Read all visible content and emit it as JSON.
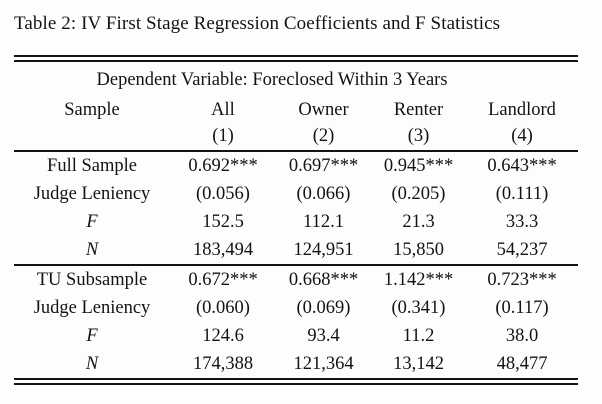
{
  "colors": {
    "ink": "#131313",
    "background": "#fdfdfd"
  },
  "caption": "Table 2: IV First Stage Regression Coefficients and F Statistics",
  "table": {
    "dependent_variable_header": "Dependent Variable: Foreclosed Within 3 Years",
    "columns": {
      "sample_label": "Sample",
      "groups": [
        "All",
        "Owner",
        "Renter",
        "Landlord"
      ],
      "numbers": [
        "(1)",
        "(2)",
        "(3)",
        "(4)"
      ]
    },
    "panels": [
      {
        "rows": [
          {
            "label": "Full Sample",
            "values": [
              "0.692***",
              "0.697***",
              "0.945***",
              "0.643***"
            ]
          },
          {
            "label": "Judge Leniency",
            "values": [
              "(0.056)",
              "(0.066)",
              "(0.205)",
              "(0.111)"
            ]
          },
          {
            "label": "F",
            "values": [
              "152.5",
              "112.1",
              "21.3",
              "33.3"
            ]
          },
          {
            "label": "N",
            "values": [
              "183,494",
              "124,951",
              "15,850",
              "54,237"
            ]
          }
        ]
      },
      {
        "rows": [
          {
            "label": "TU Subsample",
            "values": [
              "0.672***",
              "0.668***",
              "1.142***",
              "0.723***"
            ]
          },
          {
            "label": "Judge Leniency",
            "values": [
              "(0.060)",
              "(0.069)",
              "(0.341)",
              "(0.117)"
            ]
          },
          {
            "label": "F",
            "values": [
              "124.6",
              "93.4",
              "11.2",
              "38.0"
            ]
          },
          {
            "label": "N",
            "values": [
              "174,388",
              "121,364",
              "13,142",
              "48,477"
            ]
          }
        ]
      }
    ]
  }
}
